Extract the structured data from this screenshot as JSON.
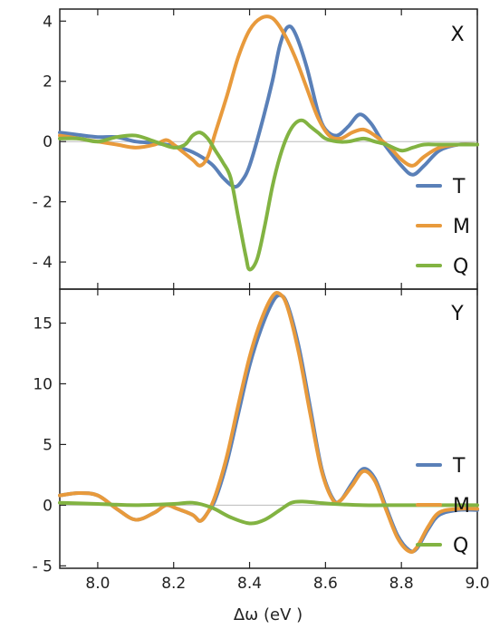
{
  "chart_data": [
    {
      "type": "line",
      "panel_label": "X",
      "xlim": [
        7.9,
        9.0
      ],
      "ylim": [
        -4.9,
        4.4
      ],
      "yticks": [
        4,
        2,
        0,
        -2,
        -4
      ],
      "ytick_labels": [
        "4",
        "2",
        "0",
        "- 2",
        "- 4"
      ],
      "zero_line": true,
      "legend_position": "bottom-right",
      "series": [
        {
          "name": "T",
          "color": "#5a80b8",
          "points": [
            [
              7.9,
              0.3
            ],
            [
              7.95,
              0.22
            ],
            [
              8.0,
              0.15
            ],
            [
              8.05,
              0.15
            ],
            [
              8.1,
              0.0
            ],
            [
              8.15,
              -0.05
            ],
            [
              8.2,
              -0.15
            ],
            [
              8.25,
              -0.35
            ],
            [
              8.3,
              -0.75
            ],
            [
              8.33,
              -1.2
            ],
            [
              8.36,
              -1.5
            ],
            [
              8.38,
              -1.3
            ],
            [
              8.4,
              -0.8
            ],
            [
              8.43,
              0.5
            ],
            [
              8.46,
              2.0
            ],
            [
              8.48,
              3.2
            ],
            [
              8.5,
              3.8
            ],
            [
              8.52,
              3.6
            ],
            [
              8.55,
              2.5
            ],
            [
              8.58,
              1.0
            ],
            [
              8.6,
              0.4
            ],
            [
              8.63,
              0.2
            ],
            [
              8.66,
              0.5
            ],
            [
              8.69,
              0.9
            ],
            [
              8.72,
              0.6
            ],
            [
              8.75,
              0.0
            ],
            [
              8.8,
              -0.8
            ],
            [
              8.83,
              -1.1
            ],
            [
              8.86,
              -0.8
            ],
            [
              8.9,
              -0.3
            ],
            [
              8.95,
              -0.1
            ],
            [
              9.0,
              -0.1
            ]
          ]
        },
        {
          "name": "M",
          "color": "#e89a3c",
          "points": [
            [
              7.9,
              0.2
            ],
            [
              7.95,
              0.1
            ],
            [
              8.0,
              0.0
            ],
            [
              8.05,
              -0.1
            ],
            [
              8.1,
              -0.2
            ],
            [
              8.15,
              -0.1
            ],
            [
              8.18,
              0.05
            ],
            [
              8.2,
              -0.1
            ],
            [
              8.22,
              -0.3
            ],
            [
              8.25,
              -0.6
            ],
            [
              8.27,
              -0.8
            ],
            [
              8.29,
              -0.5
            ],
            [
              8.31,
              0.3
            ],
            [
              8.34,
              1.5
            ],
            [
              8.37,
              2.8
            ],
            [
              8.4,
              3.7
            ],
            [
              8.43,
              4.1
            ],
            [
              8.46,
              4.1
            ],
            [
              8.49,
              3.6
            ],
            [
              8.52,
              2.8
            ],
            [
              8.55,
              1.8
            ],
            [
              8.58,
              0.8
            ],
            [
              8.61,
              0.2
            ],
            [
              8.64,
              0.1
            ],
            [
              8.67,
              0.3
            ],
            [
              8.7,
              0.4
            ],
            [
              8.73,
              0.2
            ],
            [
              8.77,
              -0.2
            ],
            [
              8.8,
              -0.6
            ],
            [
              8.83,
              -0.8
            ],
            [
              8.86,
              -0.5
            ],
            [
              8.9,
              -0.2
            ],
            [
              8.95,
              -0.1
            ],
            [
              9.0,
              -0.1
            ]
          ]
        },
        {
          "name": "Q",
          "color": "#82b342",
          "points": [
            [
              7.9,
              0.1
            ],
            [
              7.95,
              0.1
            ],
            [
              8.0,
              0.0
            ],
            [
              8.05,
              0.15
            ],
            [
              8.1,
              0.2
            ],
            [
              8.15,
              0.0
            ],
            [
              8.2,
              -0.2
            ],
            [
              8.23,
              -0.1
            ],
            [
              8.25,
              0.2
            ],
            [
              8.27,
              0.3
            ],
            [
              8.29,
              0.1
            ],
            [
              8.31,
              -0.3
            ],
            [
              8.33,
              -0.7
            ],
            [
              8.35,
              -1.2
            ],
            [
              8.37,
              -2.5
            ],
            [
              8.39,
              -3.8
            ],
            [
              8.4,
              -4.25
            ],
            [
              8.42,
              -3.9
            ],
            [
              8.44,
              -2.8
            ],
            [
              8.46,
              -1.5
            ],
            [
              8.48,
              -0.5
            ],
            [
              8.5,
              0.2
            ],
            [
              8.52,
              0.6
            ],
            [
              8.54,
              0.7
            ],
            [
              8.56,
              0.5
            ],
            [
              8.58,
              0.3
            ],
            [
              8.6,
              0.1
            ],
            [
              8.63,
              0.0
            ],
            [
              8.66,
              0.0
            ],
            [
              8.7,
              0.1
            ],
            [
              8.73,
              0.0
            ],
            [
              8.76,
              -0.1
            ],
            [
              8.8,
              -0.3
            ],
            [
              8.83,
              -0.2
            ],
            [
              8.86,
              -0.1
            ],
            [
              8.9,
              -0.1
            ],
            [
              9.0,
              -0.1
            ]
          ]
        }
      ]
    },
    {
      "type": "line",
      "panel_label": "Y",
      "xlim": [
        7.9,
        9.0
      ],
      "ylim": [
        -5.2,
        17.8
      ],
      "yticks": [
        15,
        10,
        5,
        0,
        -5
      ],
      "ytick_labels": [
        "15",
        "10",
        "5",
        "0",
        "- 5"
      ],
      "zero_line": true,
      "legend_position": "bottom-right",
      "series": [
        {
          "name": "T",
          "color": "#5a80b8",
          "points": [
            [
              7.9,
              0.8
            ],
            [
              7.95,
              1.0
            ],
            [
              8.0,
              0.8
            ],
            [
              8.05,
              -0.3
            ],
            [
              8.1,
              -1.2
            ],
            [
              8.15,
              -0.6
            ],
            [
              8.18,
              0.0
            ],
            [
              8.21,
              -0.3
            ],
            [
              8.25,
              -0.8
            ],
            [
              8.27,
              -1.3
            ],
            [
              8.29,
              -0.6
            ],
            [
              8.31,
              0.5
            ],
            [
              8.34,
              3.5
            ],
            [
              8.37,
              7.5
            ],
            [
              8.4,
              11.5
            ],
            [
              8.43,
              14.5
            ],
            [
              8.46,
              16.7
            ],
            [
              8.48,
              17.3
            ],
            [
              8.5,
              16.5
            ],
            [
              8.53,
              13.0
            ],
            [
              8.56,
              8.0
            ],
            [
              8.59,
              3.0
            ],
            [
              8.62,
              0.5
            ],
            [
              8.64,
              0.4
            ],
            [
              8.67,
              1.8
            ],
            [
              8.7,
              3.0
            ],
            [
              8.73,
              2.2
            ],
            [
              8.76,
              -0.2
            ],
            [
              8.79,
              -2.5
            ],
            [
              8.82,
              -3.7
            ],
            [
              8.84,
              -3.6
            ],
            [
              8.87,
              -2.0
            ],
            [
              8.9,
              -0.8
            ],
            [
              8.95,
              -0.4
            ],
            [
              9.0,
              -0.4
            ]
          ]
        },
        {
          "name": "M",
          "color": "#e89a3c",
          "points": [
            [
              7.9,
              0.8
            ],
            [
              7.95,
              1.0
            ],
            [
              8.0,
              0.8
            ],
            [
              8.05,
              -0.3
            ],
            [
              8.1,
              -1.2
            ],
            [
              8.15,
              -0.6
            ],
            [
              8.18,
              0.0
            ],
            [
              8.21,
              -0.3
            ],
            [
              8.25,
              -0.8
            ],
            [
              8.27,
              -1.3
            ],
            [
              8.29,
              -0.6
            ],
            [
              8.31,
              0.8
            ],
            [
              8.34,
              4.0
            ],
            [
              8.37,
              8.2
            ],
            [
              8.4,
              12.2
            ],
            [
              8.43,
              15.2
            ],
            [
              8.46,
              17.2
            ],
            [
              8.48,
              17.4
            ],
            [
              8.5,
              16.3
            ],
            [
              8.53,
              12.5
            ],
            [
              8.56,
              7.5
            ],
            [
              8.59,
              2.8
            ],
            [
              8.62,
              0.4
            ],
            [
              8.64,
              0.4
            ],
            [
              8.67,
              1.6
            ],
            [
              8.7,
              2.8
            ],
            [
              8.73,
              2.0
            ],
            [
              8.76,
              -0.4
            ],
            [
              8.79,
              -2.7
            ],
            [
              8.82,
              -3.8
            ],
            [
              8.84,
              -3.5
            ],
            [
              8.87,
              -1.8
            ],
            [
              8.9,
              -0.6
            ],
            [
              8.95,
              -0.3
            ],
            [
              9.0,
              -0.3
            ]
          ]
        },
        {
          "name": "Q",
          "color": "#82b342",
          "points": [
            [
              7.9,
              0.2
            ],
            [
              8.0,
              0.1
            ],
            [
              8.1,
              0.0
            ],
            [
              8.2,
              0.1
            ],
            [
              8.25,
              0.2
            ],
            [
              8.3,
              -0.2
            ],
            [
              8.35,
              -1.0
            ],
            [
              8.4,
              -1.5
            ],
            [
              8.44,
              -1.2
            ],
            [
              8.48,
              -0.4
            ],
            [
              8.51,
              0.2
            ],
            [
              8.54,
              0.3
            ],
            [
              8.58,
              0.2
            ],
            [
              8.62,
              0.1
            ],
            [
              8.7,
              0.0
            ],
            [
              8.8,
              0.0
            ],
            [
              8.9,
              0.0
            ],
            [
              9.0,
              0.0
            ]
          ]
        }
      ]
    }
  ],
  "x_axis": {
    "ticks": [
      8.0,
      8.2,
      8.4,
      8.6,
      8.8,
      9.0
    ],
    "tick_labels": [
      "8.0",
      "8.2",
      "8.4",
      "8.6",
      "8.8",
      "9.0"
    ],
    "title": "Δω (eV )"
  }
}
